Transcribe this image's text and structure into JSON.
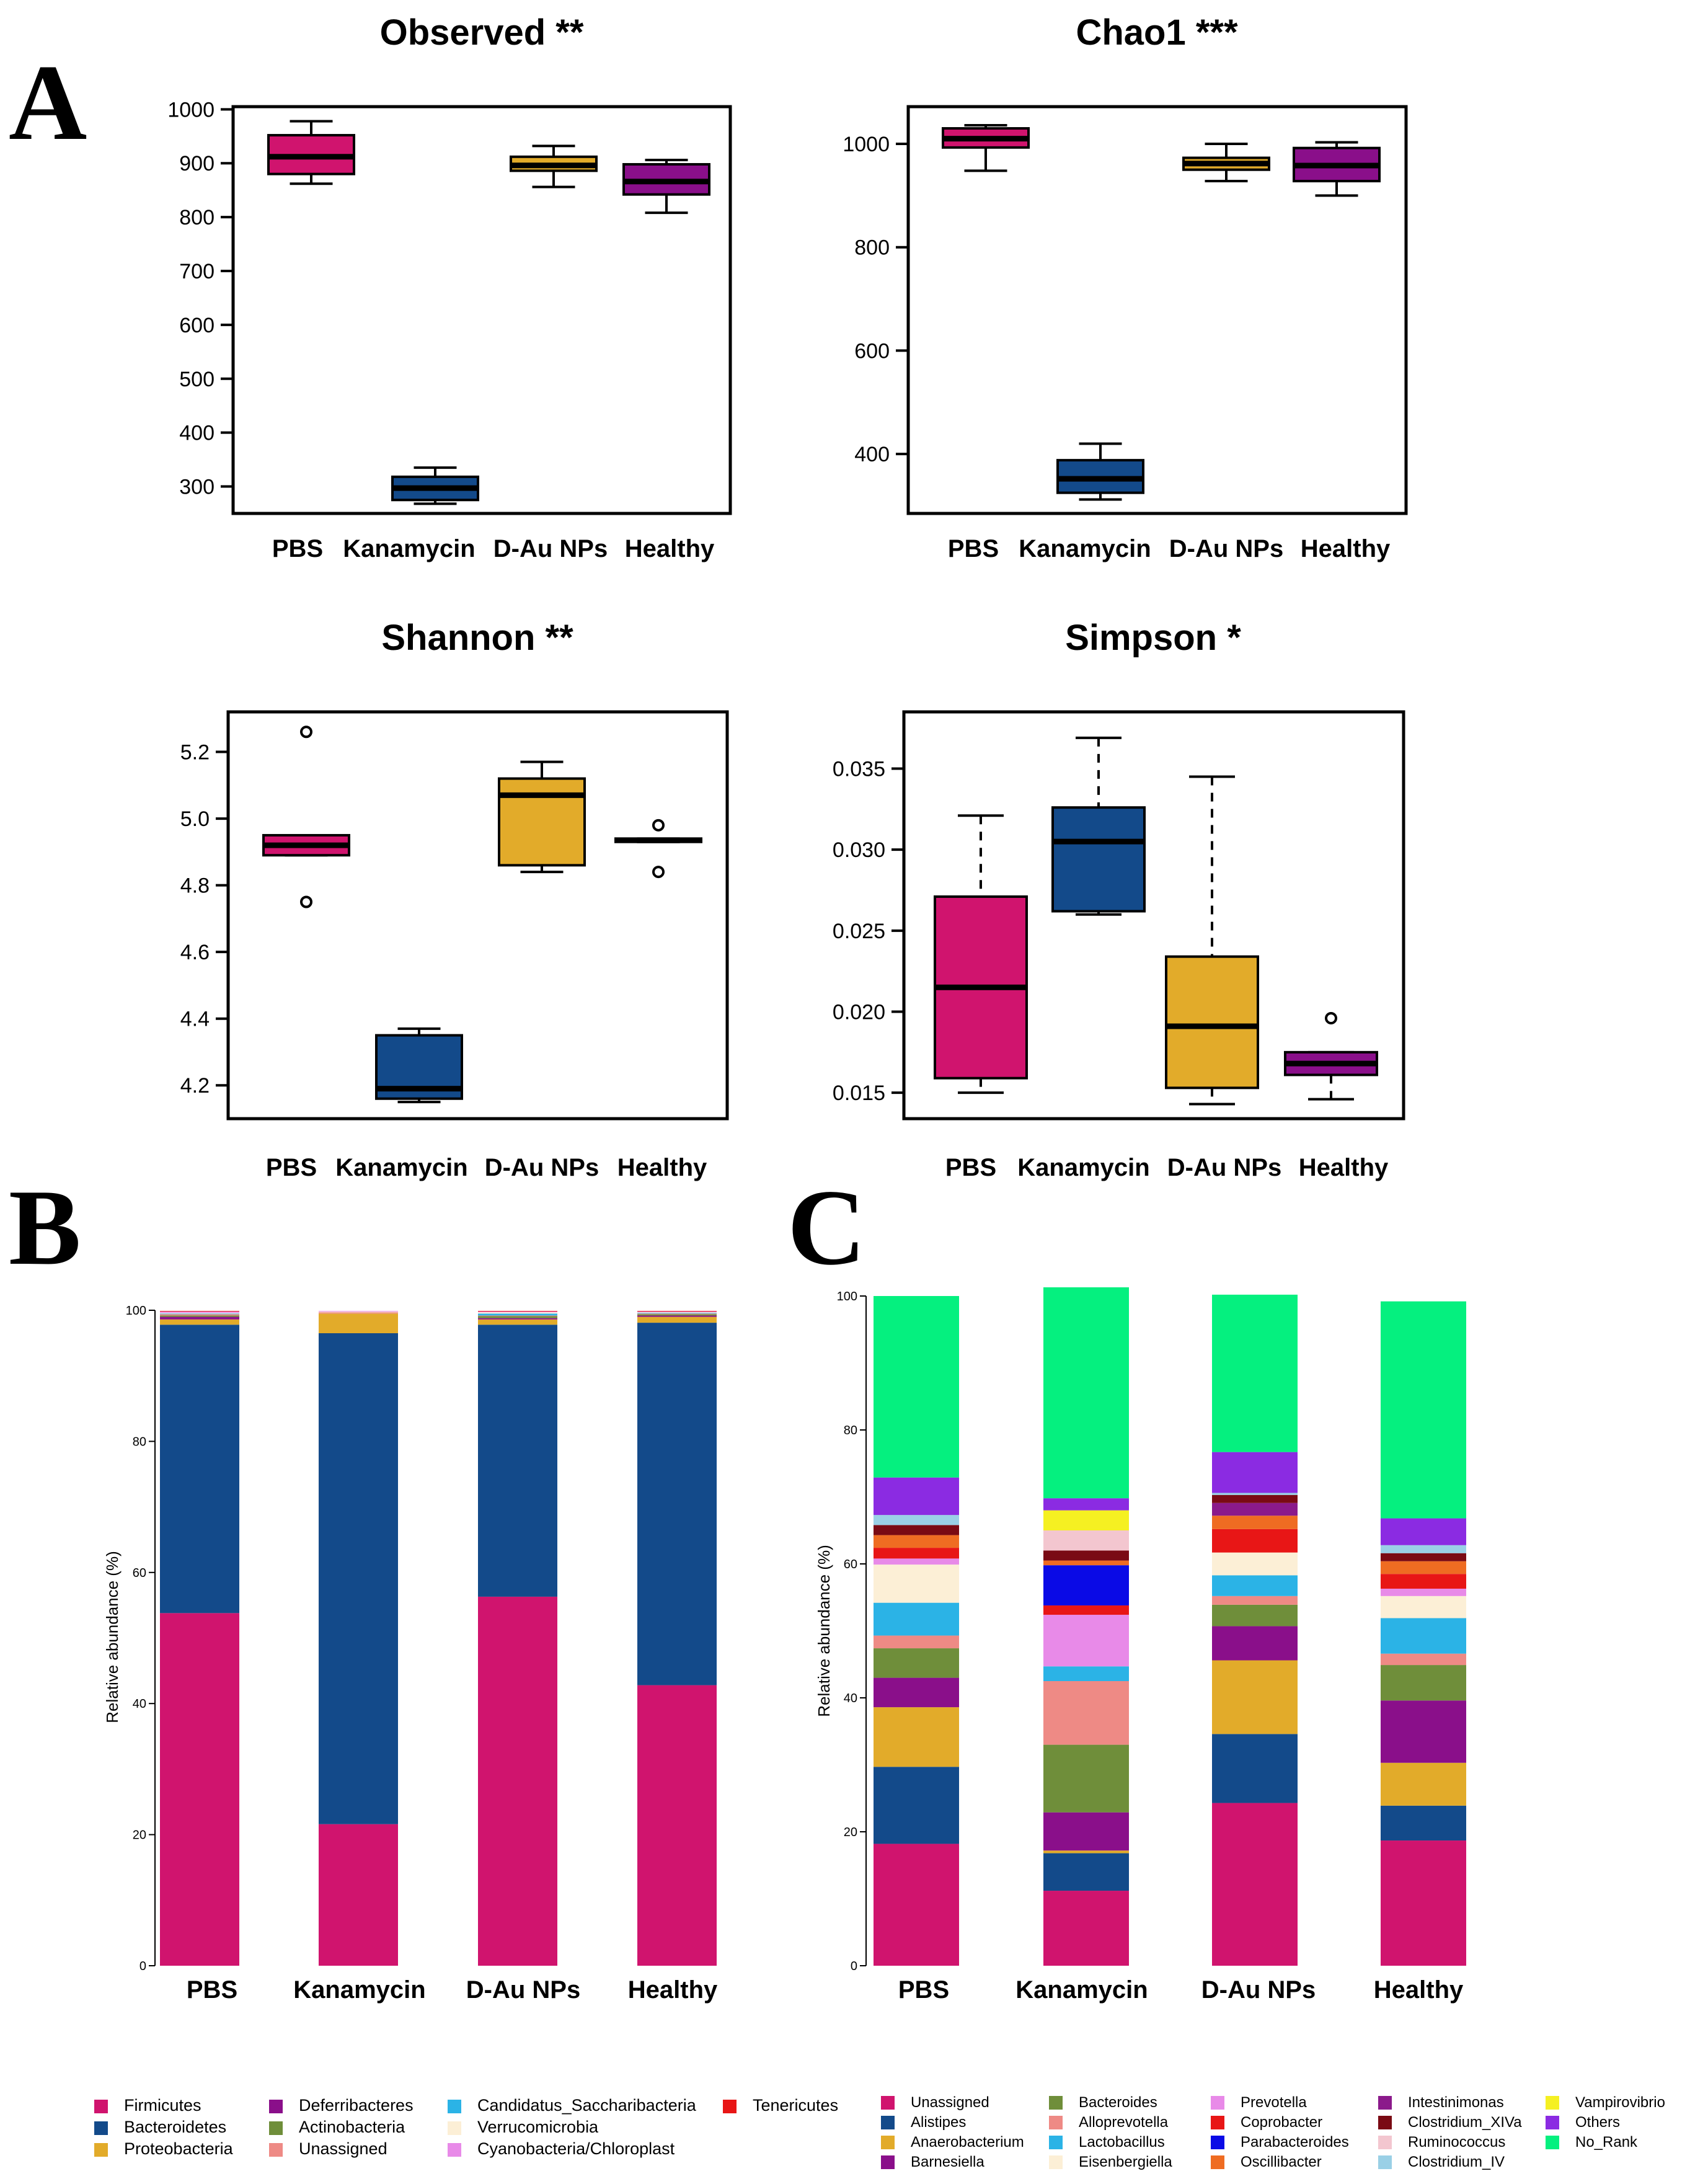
{
  "panel_letters": [
    "A",
    "B",
    "C"
  ],
  "group_labels": [
    "PBS",
    "Kanamycin",
    "D-Au NPs",
    "Healthy"
  ],
  "colors": {
    "PBS": "#d0146e",
    "Kanamycin": "#134a8a",
    "D-Au NPs": "#e2ab2a",
    "Healthy": "#8a0f8a"
  },
  "chart_data": [
    {
      "type": "box",
      "panel": "A",
      "title": "Observed **",
      "ylim": [
        250,
        1005
      ],
      "yticks": [
        300,
        400,
        500,
        600,
        700,
        800,
        900,
        1000
      ],
      "tick_labels": [
        "300",
        "400",
        "500",
        "600",
        "700",
        "800",
        "900",
        "1000"
      ],
      "boxes": [
        {
          "group": "PBS",
          "lo": 862,
          "q1": 880,
          "med": 912,
          "q3": 952,
          "hi": 978,
          "outliers": []
        },
        {
          "group": "Kanamycin",
          "lo": 268,
          "q1": 275,
          "med": 297,
          "q3": 318,
          "hi": 335,
          "outliers": []
        },
        {
          "group": "D-Au NPs",
          "lo": 856,
          "q1": 886,
          "med": 896,
          "q3": 912,
          "hi": 932,
          "outliers": []
        },
        {
          "group": "Healthy",
          "lo": 808,
          "q1": 842,
          "med": 866,
          "q3": 898,
          "hi": 906,
          "outliers": []
        }
      ]
    },
    {
      "type": "box",
      "panel": "A",
      "title": "Chao1 ***",
      "ylim": [
        285,
        1072
      ],
      "yticks": [
        400,
        600,
        800,
        1000
      ],
      "tick_labels": [
        "400",
        "600",
        "800",
        "1000"
      ],
      "boxes": [
        {
          "group": "PBS",
          "lo": 948,
          "q1": 993,
          "med": 1010,
          "q3": 1030,
          "hi": 1036,
          "outliers": []
        },
        {
          "group": "Kanamycin",
          "lo": 312,
          "q1": 325,
          "med": 352,
          "q3": 388,
          "hi": 420,
          "outliers": []
        },
        {
          "group": "D-Au NPs",
          "lo": 928,
          "q1": 950,
          "med": 962,
          "q3": 973,
          "hi": 1000,
          "outliers": []
        },
        {
          "group": "Healthy",
          "lo": 900,
          "q1": 928,
          "med": 958,
          "q3": 992,
          "hi": 1003,
          "outliers": []
        }
      ]
    },
    {
      "type": "box",
      "panel": "A",
      "title": "Shannon **",
      "ylim": [
        4.1,
        5.32
      ],
      "yticks": [
        4.2,
        4.4,
        4.6,
        4.8,
        5.0,
        5.2
      ],
      "tick_labels": [
        "4.2",
        "4.4",
        "4.6",
        "4.8",
        "5.0",
        "5.2"
      ],
      "boxes": [
        {
          "group": "PBS",
          "lo": 4.89,
          "q1": 4.89,
          "med": 4.92,
          "q3": 4.95,
          "hi": 4.95,
          "outliers": [
            4.75,
            5.26
          ]
        },
        {
          "group": "Kanamycin",
          "lo": 4.15,
          "q1": 4.16,
          "med": 4.19,
          "q3": 4.35,
          "hi": 4.37,
          "outliers": []
        },
        {
          "group": "D-Au NPs",
          "lo": 4.84,
          "q1": 4.86,
          "med": 5.07,
          "q3": 5.12,
          "hi": 5.17,
          "outliers": []
        },
        {
          "group": "Healthy",
          "lo": 4.93,
          "q1": 4.93,
          "med": 4.935,
          "q3": 4.94,
          "hi": 4.94,
          "outliers": [
            4.84,
            4.98
          ]
        }
      ]
    },
    {
      "type": "box",
      "panel": "A",
      "title": "Simpson *",
      "ylim": [
        0.0134,
        0.0385
      ],
      "yticks": [
        0.015,
        0.02,
        0.025,
        0.03,
        0.035
      ],
      "tick_labels": [
        "0.015",
        "0.020",
        "0.025",
        "0.030",
        "0.035"
      ],
      "boxes": [
        {
          "group": "PBS",
          "lo": 0.015,
          "q1": 0.0159,
          "med": 0.0215,
          "q3": 0.0271,
          "hi": 0.0321,
          "outliers": []
        },
        {
          "group": "Kanamycin",
          "lo": 0.026,
          "q1": 0.0262,
          "med": 0.0305,
          "q3": 0.0326,
          "hi": 0.0369,
          "outliers": []
        },
        {
          "group": "D-Au NPs",
          "lo": 0.0143,
          "q1": 0.0153,
          "med": 0.0191,
          "q3": 0.0234,
          "hi": 0.0345,
          "outliers": []
        },
        {
          "group": "Healthy",
          "lo": 0.0146,
          "q1": 0.0161,
          "med": 0.0168,
          "q3": 0.0175,
          "hi": 0.0175,
          "outliers": [
            0.0196
          ]
        }
      ]
    },
    {
      "type": "stacked_bar",
      "panel": "B",
      "ylabel": "Relative abundance (%)",
      "ylim": [
        0,
        100
      ],
      "yticks": [
        0,
        20,
        40,
        60,
        80,
        100
      ],
      "tick_labels": [
        "0",
        "20",
        "40",
        "60",
        "80",
        "100"
      ],
      "categories": [
        "PBS",
        "Kanamycin",
        "D-Au NPs",
        "Healthy"
      ],
      "series": [
        {
          "name": "Firmicutes",
          "color": "#d0146e",
          "values": [
            53.8,
            21.6,
            56.3,
            42.8
          ]
        },
        {
          "name": "Bacteroidetes",
          "color": "#134a8a",
          "values": [
            44.0,
            74.9,
            41.5,
            55.3
          ]
        },
        {
          "name": "Proteobacteria",
          "color": "#e2ab2a",
          "values": [
            0.8,
            3.0,
            0.8,
            0.9
          ]
        },
        {
          "name": "Deferribacteres",
          "color": "#8a0f8a",
          "values": [
            0.4,
            0,
            0.2,
            0.2
          ]
        },
        {
          "name": "Actinobacteria",
          "color": "#6f8e3a",
          "values": [
            0.2,
            0,
            0.3,
            0.2
          ]
        },
        {
          "name": "Unassigned",
          "color": "#ee8a85",
          "values": [
            0.2,
            0.2,
            0.1,
            0.1
          ]
        },
        {
          "name": "Candidatus_Saccharibacteria",
          "color": "#2bb3e6",
          "values": [
            0.1,
            0,
            0.3,
            0.1
          ]
        },
        {
          "name": "Verrucomicrobia",
          "color": "#fcefd6",
          "values": [
            0.1,
            0.1,
            0.2,
            0.1
          ]
        },
        {
          "name": "Cyanobacteria/Chloroplast",
          "color": "#e88ae8",
          "values": [
            0.2,
            0.1,
            0.1,
            0.1
          ]
        },
        {
          "name": "Tenericutes",
          "color": "#e81616",
          "values": [
            0.1,
            0,
            0.1,
            0.1
          ]
        }
      ]
    },
    {
      "type": "stacked_bar",
      "panel": "C",
      "ylabel": "Relative abundance (%)",
      "ylim": [
        0,
        100
      ],
      "yticks": [
        0,
        20,
        40,
        60,
        80,
        100
      ],
      "tick_labels": [
        "0",
        "20",
        "40",
        "60",
        "80",
        "100"
      ],
      "categories": [
        "PBS",
        "Kanamycin",
        "D-Au NPs",
        "Healthy"
      ],
      "series": [
        {
          "name": "Unassigned",
          "color": "#d0146e",
          "values": [
            18.2,
            11.2,
            24.3,
            18.7
          ]
        },
        {
          "name": "Alistipes",
          "color": "#134a8a",
          "values": [
            11.5,
            5.6,
            10.3,
            5.2
          ]
        },
        {
          "name": "Anaerobacterium",
          "color": "#e2ab2a",
          "values": [
            8.9,
            0.4,
            11.0,
            6.4
          ]
        },
        {
          "name": "Barnesiella",
          "color": "#8a0f8a",
          "values": [
            4.4,
            5.7,
            5.1,
            9.3
          ]
        },
        {
          "name": "Bacteroides",
          "color": "#6f8e3a",
          "values": [
            4.4,
            10.1,
            3.2,
            5.3
          ]
        },
        {
          "name": "Alloprevotella",
          "color": "#ee8a85",
          "values": [
            1.9,
            9.5,
            1.3,
            1.7
          ]
        },
        {
          "name": "Lactobacillus",
          "color": "#2bb3e6",
          "values": [
            4.9,
            2.2,
            3.1,
            5.3
          ]
        },
        {
          "name": "Eisenbergiella",
          "color": "#fcefd6",
          "values": [
            5.7,
            0,
            3.4,
            3.3
          ]
        },
        {
          "name": "Prevotella",
          "color": "#e88ae8",
          "values": [
            0.9,
            7.7,
            0,
            1.1
          ]
        },
        {
          "name": "Coprobacter",
          "color": "#e81616",
          "values": [
            1.6,
            1.4,
            3.5,
            2.2
          ]
        },
        {
          "name": "Parabacteroides",
          "color": "#0a0ae6",
          "values": [
            0,
            6.0,
            0,
            0
          ]
        },
        {
          "name": "Oscillibacter",
          "color": "#ef6c22",
          "values": [
            1.9,
            0.7,
            2.0,
            1.9
          ]
        },
        {
          "name": "Intestinimonas",
          "color": "#8b1a8b",
          "values": [
            0,
            0,
            1.9,
            0
          ]
        },
        {
          "name": "Clostridium_XIVa",
          "color": "#7a0a14",
          "values": [
            1.5,
            1.5,
            1.2,
            1.2
          ]
        },
        {
          "name": "Ruminococcus",
          "color": "#f3c6cf",
          "values": [
            0,
            3.0,
            0,
            0
          ]
        },
        {
          "name": "Clostridium_IV",
          "color": "#9ad0e6",
          "values": [
            1.5,
            0,
            0.3,
            1.2
          ]
        },
        {
          "name": "Vampirovibrio",
          "color": "#f5f022",
          "values": [
            0,
            3.0,
            0,
            0
          ]
        },
        {
          "name": "Others",
          "color": "#8b2be2",
          "values": [
            5.6,
            1.8,
            6.1,
            4.0
          ]
        },
        {
          "name": "No_Rank",
          "color": "#05f07f",
          "values": [
            27.1,
            31.5,
            23.5,
            32.4
          ]
        }
      ]
    }
  ]
}
